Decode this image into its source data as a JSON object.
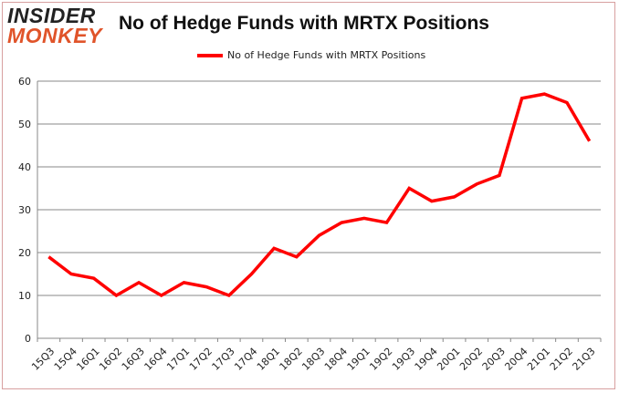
{
  "logo": {
    "line1": "INSIDER",
    "line2": "MONKEY"
  },
  "chart_data": {
    "type": "line",
    "title": "No of Hedge Funds with MRTX Positions",
    "xlabel": "",
    "ylabel": "",
    "categories": [
      "15Q3",
      "15Q4",
      "16Q1",
      "16Q2",
      "16Q3",
      "16Q4",
      "17Q1",
      "17Q2",
      "17Q3",
      "17Q4",
      "18Q1",
      "18Q2",
      "18Q3",
      "18Q4",
      "19Q1",
      "19Q2",
      "19Q3",
      "19Q4",
      "20Q1",
      "20Q2",
      "20Q3",
      "20Q4",
      "21Q1",
      "21Q2",
      "21Q3"
    ],
    "series": [
      {
        "name": "No of Hedge Funds with MRTX Positions",
        "color": "#ff0000",
        "values": [
          19,
          15,
          14,
          10,
          13,
          10,
          13,
          12,
          10,
          15,
          21,
          19,
          24,
          27,
          28,
          27,
          35,
          32,
          33,
          36,
          38,
          56,
          57,
          55,
          46
        ]
      }
    ],
    "ylim": [
      0,
      60
    ],
    "yticks": [
      0,
      10,
      20,
      30,
      40,
      50,
      60
    ],
    "grid": true,
    "legend_placement": "top-center"
  }
}
